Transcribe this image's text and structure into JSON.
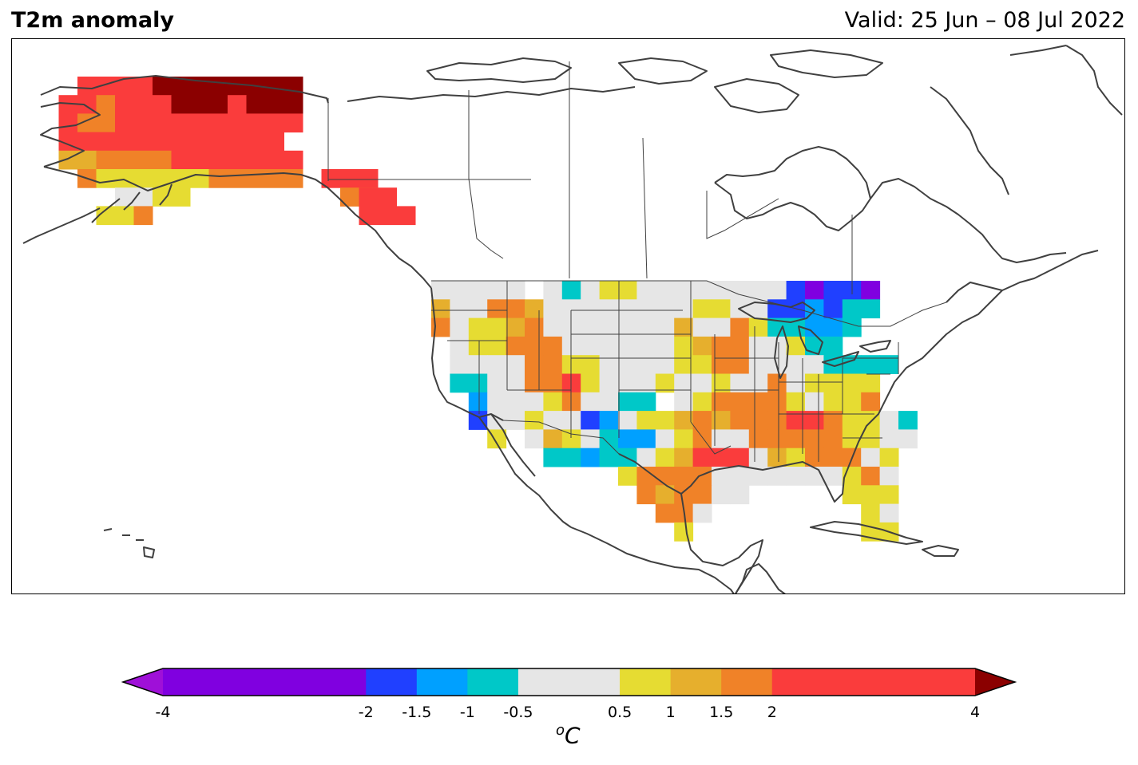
{
  "header": {
    "title": "T2m anomaly",
    "valid": "Valid: 25 Jun – 08 Jul 2022"
  },
  "colorbar": {
    "unit_base": "C",
    "unit_sup": "o",
    "boundaries": [
      -4,
      -2,
      -1.5,
      -1,
      -0.5,
      0.5,
      1,
      1.5,
      2,
      4
    ],
    "tick_labels": [
      "-4",
      "-2",
      "-1.5",
      "-1",
      "-0.5",
      "0.5",
      "1",
      "1.5",
      "2",
      "4"
    ],
    "colors": [
      "#8000e0",
      "#2040ff",
      "#00a0ff",
      "#00c8c8",
      "#e6e6e6",
      "#e6dc32",
      "#e6af2d",
      "#f08228",
      "#fa3c3c"
    ],
    "under_color": "#9f10d8",
    "over_color": "#8b0000",
    "extend": "both"
  },
  "map": {
    "region": "North America",
    "projection": "Plate Carree",
    "variable": "2m temperature anomaly",
    "colors": {
      "dark_red": "#8b0000",
      "red": "#fa3c3c",
      "orange": "#f08228",
      "gold": "#e6af2d",
      "yellow": "#e6dc32",
      "gray": "#e6e6e6",
      "cyan": "#00c8c8",
      "light_blue": "#00a0ff",
      "blue": "#2040ff",
      "purple": "#8000e0",
      "coast": "#404040"
    }
  }
}
